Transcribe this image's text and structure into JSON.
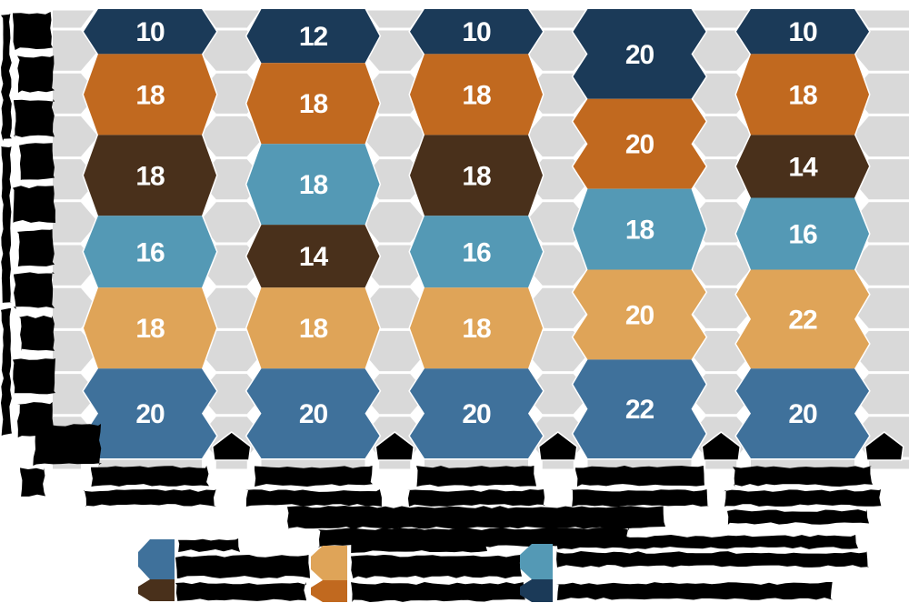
{
  "chart_data": {
    "type": "bar",
    "variant": "100-percent-stacked-hexagon-columns",
    "title": "",
    "xlabel": "",
    "ylabel": "",
    "ylim": [
      0,
      100
    ],
    "text_legibility_note": "all axis tick labels, category labels, caption and legend labels are rendered in the source image as illegible solid black glyph blobs",
    "categories": [
      "",
      "",
      "",
      "",
      ""
    ],
    "categories_illegible": true,
    "columns": [
      {
        "label": "",
        "segments": [
          {
            "color_key": "navy",
            "value": 10
          },
          {
            "color_key": "orange",
            "value": 18
          },
          {
            "color_key": "brown",
            "value": 18
          },
          {
            "color_key": "lightblue",
            "value": 16
          },
          {
            "color_key": "tan",
            "value": 18
          },
          {
            "color_key": "blue",
            "value": 20
          }
        ]
      },
      {
        "label": "",
        "segments": [
          {
            "color_key": "navy",
            "value": 12
          },
          {
            "color_key": "orange",
            "value": 18
          },
          {
            "color_key": "lightblue",
            "value": 18
          },
          {
            "color_key": "brown",
            "value": 14
          },
          {
            "color_key": "tan",
            "value": 18
          },
          {
            "color_key": "blue",
            "value": 20
          }
        ]
      },
      {
        "label": "",
        "segments": [
          {
            "color_key": "navy",
            "value": 10
          },
          {
            "color_key": "orange",
            "value": 18
          },
          {
            "color_key": "brown",
            "value": 18
          },
          {
            "color_key": "lightblue",
            "value": 16
          },
          {
            "color_key": "tan",
            "value": 18
          },
          {
            "color_key": "blue",
            "value": 20
          }
        ]
      },
      {
        "label": "",
        "segments": [
          {
            "color_key": "navy",
            "value": 20
          },
          {
            "color_key": "orange",
            "value": 20
          },
          {
            "color_key": "lightblue",
            "value": 18
          },
          {
            "color_key": "tan",
            "value": 20
          },
          {
            "color_key": "blue",
            "value": 22
          }
        ]
      },
      {
        "label": "",
        "segments": [
          {
            "color_key": "navy",
            "value": 10
          },
          {
            "color_key": "orange",
            "value": 18
          },
          {
            "color_key": "brown",
            "value": 14
          },
          {
            "color_key": "lightblue",
            "value": 16
          },
          {
            "color_key": "tan",
            "value": 22
          },
          {
            "color_key": "blue",
            "value": 20
          }
        ]
      }
    ],
    "colors": {
      "navy": "#1b3a58",
      "orange": "#c1691f",
      "brown": "#49301b",
      "lightblue": "#5499b5",
      "tan": "#dfa458",
      "blue": "#3f719b",
      "track_gray": "#d9d9d9",
      "marker_black": "#000000",
      "value_text": "#ffffff",
      "background": "#ffffff"
    },
    "value_labels_shown": true,
    "y_axis": {
      "tick_blob_count": 10,
      "labels_illegible": true,
      "title_illegible": true
    },
    "x_axis": {
      "label_line_counts": [
        2,
        2,
        2,
        2,
        3
      ],
      "labels_illegible": true,
      "baseline_diamond_markers": 6,
      "caption_illegible": true
    },
    "legend": {
      "position": "bottom",
      "labels_illegible": true,
      "groups": [
        {
          "swatch_color_keys": [
            "blue",
            "brown"
          ],
          "labels": [
            "",
            ""
          ]
        },
        {
          "swatch_color_keys": [
            "tan",
            "orange"
          ],
          "labels": [
            "",
            ""
          ]
        },
        {
          "swatch_color_keys": [
            "lightblue",
            "navy"
          ],
          "labels": [
            "",
            ""
          ]
        }
      ]
    },
    "grid": {
      "gutter_track_visible": true,
      "white_row_gaps": true
    }
  }
}
